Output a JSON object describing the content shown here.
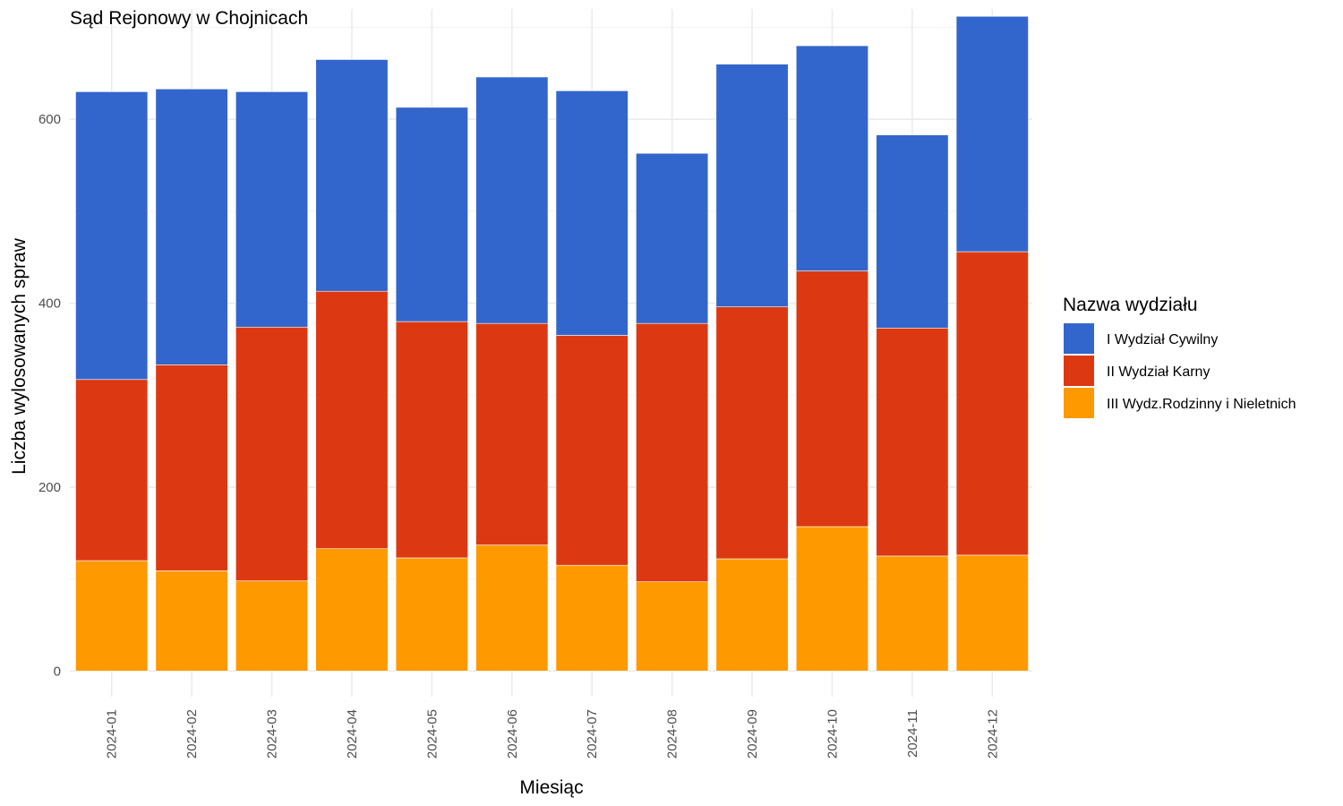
{
  "chart_data": {
    "type": "bar",
    "stacked": true,
    "title": "Sąd Rejonowy w Chojnicach",
    "xlabel": "Miesiąc",
    "ylabel": "Liczba wylosowanych spraw",
    "ylim": [
      -28,
      720
    ],
    "yticks": [
      0,
      200,
      400,
      600
    ],
    "grid": true,
    "legend": {
      "title": "Nazwa wydziału",
      "position": "right"
    },
    "categories": [
      "2024-01",
      "2024-02",
      "2024-03",
      "2024-04",
      "2024-05",
      "2024-06",
      "2024-07",
      "2024-08",
      "2024-09",
      "2024-10",
      "2024-11",
      "2024-12"
    ],
    "series": [
      {
        "name": "III Wydz.Rodzinny i Nieletnich",
        "color": "#ff9900",
        "values": [
          120,
          109,
          98,
          133,
          123,
          137,
          115,
          97,
          122,
          157,
          125,
          126
        ]
      },
      {
        "name": "II Wydział Karny",
        "color": "#dc3912",
        "values": [
          197,
          224,
          276,
          280,
          257,
          241,
          250,
          281,
          274,
          278,
          248,
          330
        ]
      },
      {
        "name": "I Wydział Cywilny",
        "color": "#3366cc",
        "values": [
          313,
          300,
          256,
          252,
          233,
          268,
          266,
          185,
          264,
          245,
          210,
          256
        ]
      }
    ],
    "legend_order": [
      "I Wydział Cywilny",
      "II Wydział Karny",
      "III Wydz.Rodzinny i Nieletnich"
    ]
  }
}
